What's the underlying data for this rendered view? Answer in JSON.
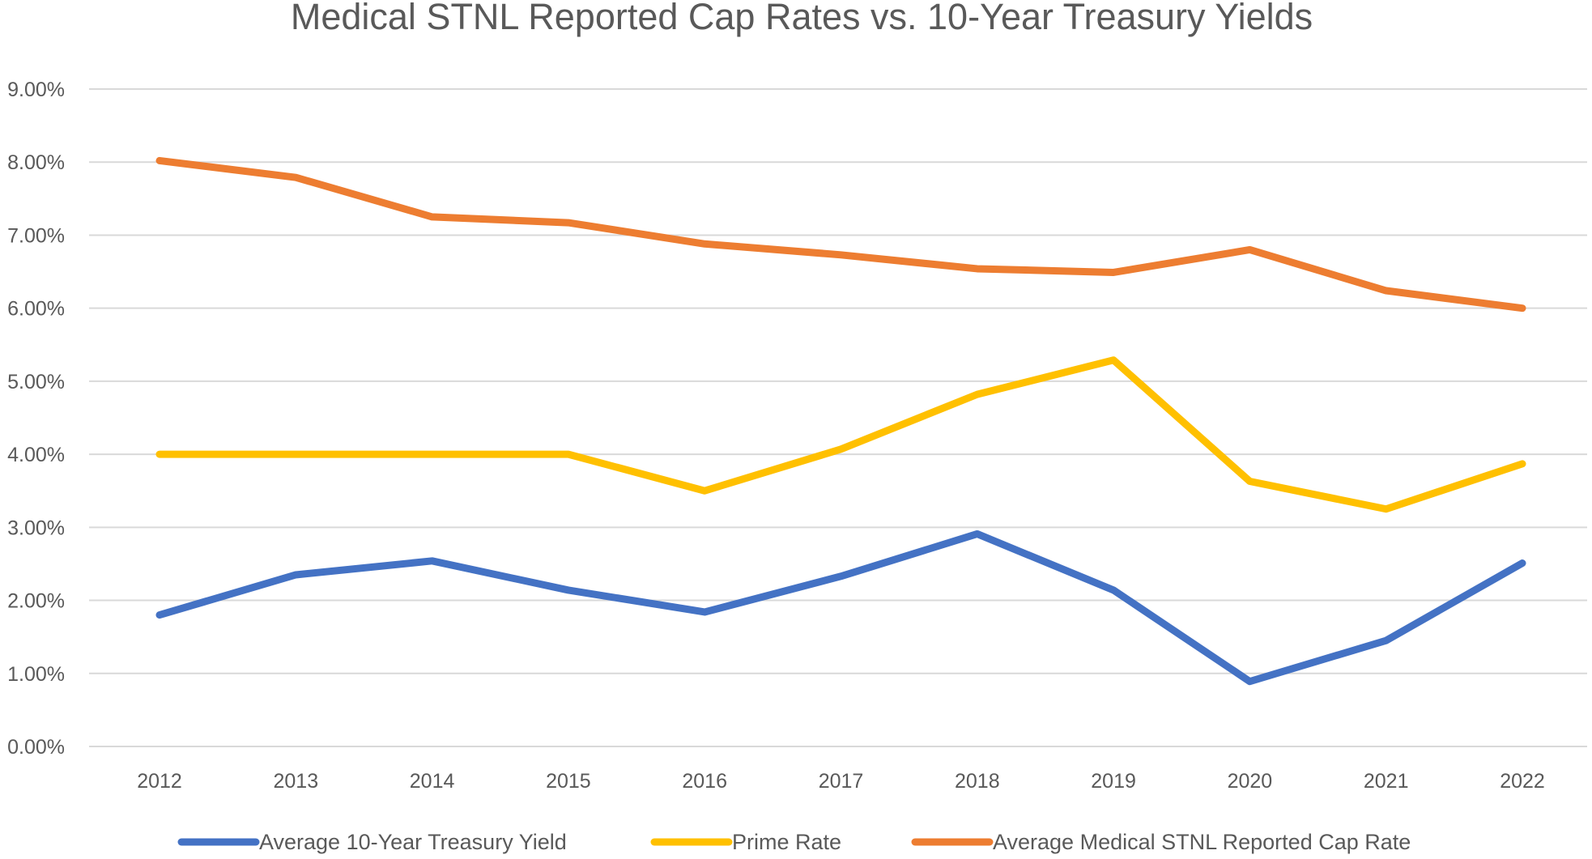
{
  "chart_data": {
    "type": "line",
    "title": "Medical STNL Reported Cap Rates vs. 10-Year Treasury Yields",
    "xlabel": "",
    "ylabel": "",
    "categories": [
      "2012",
      "2013",
      "2014",
      "2015",
      "2016",
      "2017",
      "2018",
      "2019",
      "2020",
      "2021",
      "2022"
    ],
    "ylim": [
      0,
      9
    ],
    "yticks": [
      "0.00%",
      "1.00%",
      "2.00%",
      "3.00%",
      "4.00%",
      "5.00%",
      "6.00%",
      "7.00%",
      "8.00%",
      "9.00%"
    ],
    "grid": true,
    "legend_position": "bottom",
    "series": [
      {
        "name": "Average 10-Year Treasury Yield",
        "color": "#4472c4",
        "values": [
          1.8,
          2.35,
          2.54,
          2.14,
          1.84,
          2.33,
          2.91,
          2.14,
          0.89,
          1.45,
          2.51
        ]
      },
      {
        "name": "Prime Rate",
        "color": "#ffc000",
        "values": [
          4.0,
          4.0,
          4.0,
          4.0,
          3.5,
          4.07,
          4.82,
          5.29,
          3.63,
          3.25,
          3.87
        ]
      },
      {
        "name": "Average Medical STNL Reported Cap Rate",
        "color": "#ed7d31",
        "values": [
          8.02,
          7.79,
          7.25,
          7.17,
          6.88,
          6.73,
          6.54,
          6.49,
          6.8,
          6.24,
          6.0
        ]
      }
    ]
  }
}
